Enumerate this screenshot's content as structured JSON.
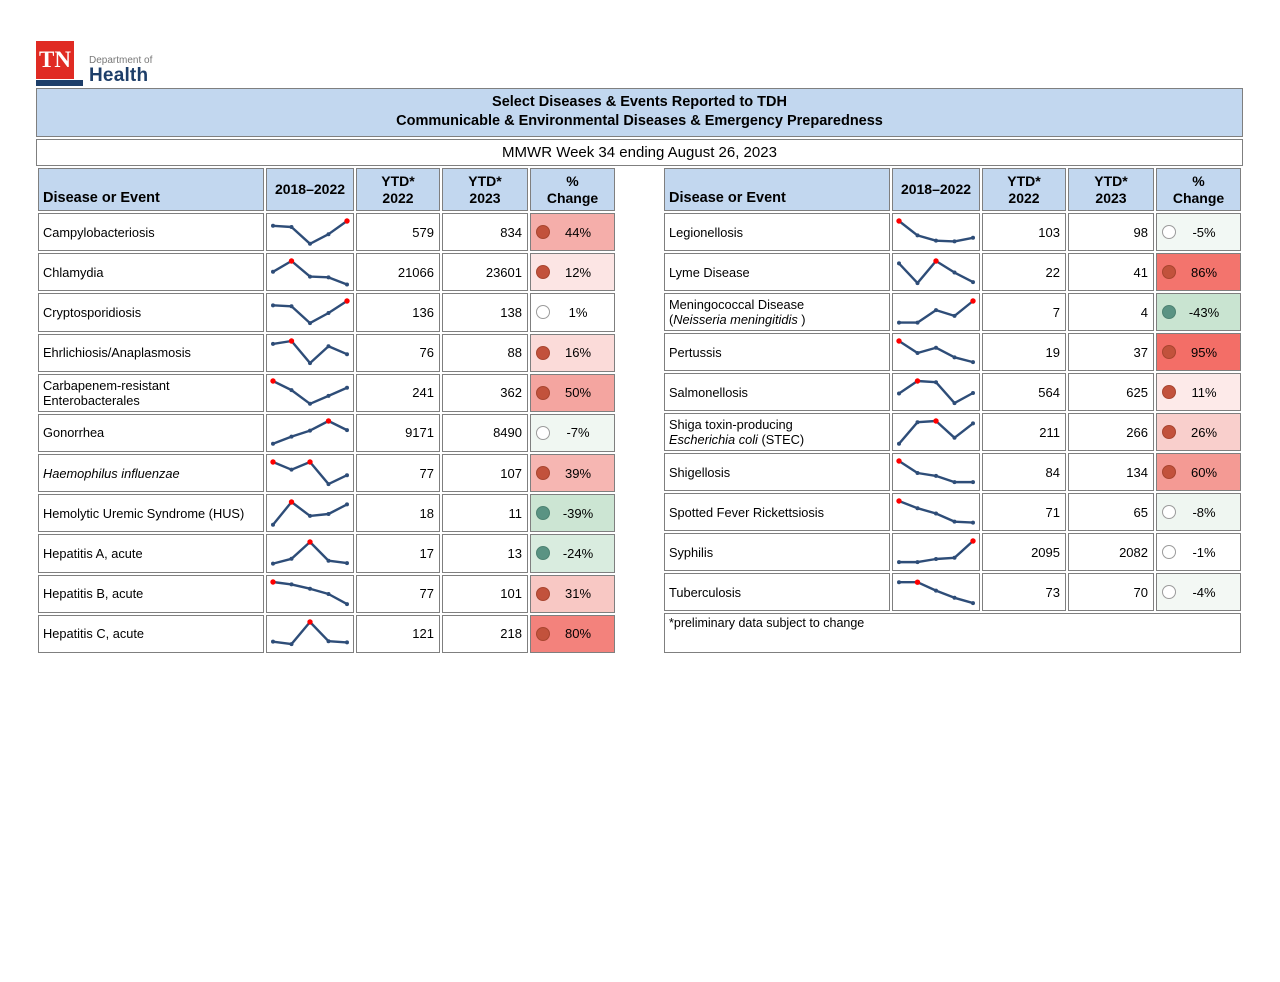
{
  "logo": {
    "tn": "TN",
    "dept": "Department of",
    "health": "Health"
  },
  "title": {
    "line1": "Select Diseases & Events Reported to TDH",
    "line2": "Communicable & Environmental Diseases & Emergency Preparedness"
  },
  "subtitle": "MMWR Week 34 ending August 26, 2023",
  "columns": {
    "disease": "Disease or Event",
    "trend": "2018–2022",
    "ytd2022_line1": "YTD*",
    "ytd2022_line2": "2022",
    "ytd2023_line1": "YTD*",
    "ytd2023_line2": "2023",
    "change_line1": "%",
    "change_line2": "Change"
  },
  "footnote": "*preliminary data subject to change",
  "colors": {
    "header_fill": "#c2d7ef",
    "cell_border": "#7f7f7f",
    "spark_line": "#2e4d78",
    "spark_peak": "#fe0000",
    "dot_up": "#c2523c",
    "dot_down": "#5a9383",
    "dot_neutral_border": "#9b9b9b",
    "logo_red": "#e02b23",
    "logo_navy": "#1d3e69"
  },
  "tables": [
    {
      "id": "left",
      "footnote": null,
      "rows": [
        {
          "name_lines": [
            [
              {
                "text": "Campylobacteriosis"
              }
            ]
          ],
          "trend": [
            0.8,
            0.75,
            0.05,
            0.45,
            1.0
          ],
          "peak": [
            4
          ],
          "ytd2022": "579",
          "ytd2023": "834",
          "change": "44%",
          "direction": "up",
          "change_bg": "#f5aeaa"
        },
        {
          "name_lines": [
            [
              {
                "text": "Chlamydia"
              }
            ]
          ],
          "trend": [
            0.55,
            1.0,
            0.35,
            0.32,
            0.02
          ],
          "peak": [
            1
          ],
          "ytd2022": "21066",
          "ytd2023": "23601",
          "change": "12%",
          "direction": "up",
          "change_bg": "#fce5e4"
        },
        {
          "name_lines": [
            [
              {
                "text": "Cryptosporidiosis"
              }
            ]
          ],
          "trend": [
            0.82,
            0.78,
            0.08,
            0.5,
            1.0
          ],
          "peak": [
            4
          ],
          "ytd2022": "136",
          "ytd2023": "138",
          "change": "1%",
          "direction": "neutral",
          "change_bg": "#ffffff"
        },
        {
          "name_lines": [
            [
              {
                "text": "Ehrlichiosis/Anaplasmosis"
              }
            ]
          ],
          "trend": [
            0.88,
            1.0,
            0.08,
            0.78,
            0.45
          ],
          "peak": [
            1
          ],
          "ytd2022": "76",
          "ytd2023": "88",
          "change": "16%",
          "direction": "up",
          "change_bg": "#fbdbd9"
        },
        {
          "name_lines": [
            [
              {
                "text": "Carbapenem-resistant"
              }
            ],
            [
              {
                "text": "Enterobacterales"
              }
            ]
          ],
          "trend": [
            1.0,
            0.62,
            0.05,
            0.38,
            0.72
          ],
          "peak": [
            0
          ],
          "ytd2022": "241",
          "ytd2023": "362",
          "change": "50%",
          "direction": "up",
          "change_bg": "#f4a5a0"
        },
        {
          "name_lines": [
            [
              {
                "text": "Gonorrhea"
              }
            ]
          ],
          "trend": [
            0.05,
            0.35,
            0.6,
            1.0,
            0.62
          ],
          "peak": [
            3
          ],
          "ytd2022": "9171",
          "ytd2023": "8490",
          "change": "-7%",
          "direction": "neutral",
          "change_bg": "#f0f7f2"
        },
        {
          "name_lines": [
            [
              {
                "text": "Haemophilus influenzae",
                "italic": true
              }
            ]
          ],
          "trend": [
            1.0,
            0.68,
            1.0,
            0.08,
            0.45
          ],
          "peak": [
            0,
            2
          ],
          "ytd2022": "77",
          "ytd2023": "107",
          "change": "39%",
          "direction": "up",
          "change_bg": "#f6b6b2"
        },
        {
          "name_lines": [
            [
              {
                "text": "Hemolytic Uremic Syndrome (HUS)"
              }
            ]
          ],
          "trend": [
            0.05,
            1.0,
            0.42,
            0.5,
            0.9
          ],
          "peak": [
            1
          ],
          "ytd2022": "18",
          "ytd2023": "11",
          "change": "-39%",
          "direction": "down",
          "change_bg": "#cce5d3"
        },
        {
          "name_lines": [
            [
              {
                "text": "Hepatitis A, acute"
              }
            ]
          ],
          "trend": [
            0.1,
            0.3,
            1.0,
            0.22,
            0.12
          ],
          "peak": [
            2
          ],
          "ytd2022": "17",
          "ytd2023": "13",
          "change": "-24%",
          "direction": "down",
          "change_bg": "#d9ecdf"
        },
        {
          "name_lines": [
            [
              {
                "text": "Hepatitis B, acute"
              }
            ]
          ],
          "trend": [
            1.0,
            0.9,
            0.72,
            0.5,
            0.08
          ],
          "peak": [
            0
          ],
          "ytd2022": "77",
          "ytd2023": "101",
          "change": "31%",
          "direction": "up",
          "change_bg": "#f8c8c4"
        },
        {
          "name_lines": [
            [
              {
                "text": "Hepatitis C, acute"
              }
            ]
          ],
          "trend": [
            0.18,
            0.08,
            1.0,
            0.2,
            0.15
          ],
          "peak": [
            2
          ],
          "ytd2022": "121",
          "ytd2023": "218",
          "change": "80%",
          "direction": "up",
          "change_bg": "#f3827c"
        }
      ]
    },
    {
      "id": "right",
      "footnote": "*preliminary data subject to change",
      "rows": [
        {
          "name_lines": [
            [
              {
                "text": "Legionellosis"
              }
            ]
          ],
          "trend": [
            1.0,
            0.4,
            0.18,
            0.15,
            0.3
          ],
          "peak": [
            0
          ],
          "ytd2022": "103",
          "ytd2023": "98",
          "change": "-5%",
          "direction": "neutral",
          "change_bg": "#f2f8f4"
        },
        {
          "name_lines": [
            [
              {
                "text": "Lyme Disease"
              }
            ]
          ],
          "trend": [
            0.9,
            0.08,
            1.0,
            0.52,
            0.12
          ],
          "peak": [
            2
          ],
          "ytd2022": "22",
          "ytd2023": "41",
          "change": "86%",
          "direction": "up",
          "change_bg": "#f3746d"
        },
        {
          "name_lines": [
            [
              {
                "text": "Meningococcal Disease"
              }
            ],
            [
              {
                "text": "("
              },
              {
                "text": "Neisseria meningitidis",
                "italic": true
              },
              {
                "text": " )"
              }
            ]
          ],
          "trend": [
            0.1,
            0.1,
            0.62,
            0.38,
            1.0
          ],
          "peak": [
            4
          ],
          "ytd2022": "7",
          "ytd2023": "4",
          "change": "-43%",
          "direction": "down",
          "change_bg": "#c9e4d1"
        },
        {
          "name_lines": [
            [
              {
                "text": "Pertussis"
              }
            ]
          ],
          "trend": [
            1.0,
            0.5,
            0.72,
            0.32,
            0.12
          ],
          "peak": [
            0
          ],
          "ytd2022": "19",
          "ytd2023": "37",
          "change": "95%",
          "direction": "up",
          "change_bg": "#f36e67"
        },
        {
          "name_lines": [
            [
              {
                "text": "Salmonellosis"
              }
            ]
          ],
          "trend": [
            0.48,
            1.0,
            0.95,
            0.08,
            0.5
          ],
          "peak": [
            1
          ],
          "ytd2022": "564",
          "ytd2023": "625",
          "change": "11%",
          "direction": "up",
          "change_bg": "#fdeae9"
        },
        {
          "name_lines": [
            [
              {
                "text": "Shiga toxin-producing"
              }
            ],
            [
              {
                "text": "Escherichia coli",
                "italic": true
              },
              {
                "text": " (STEC)"
              }
            ]
          ],
          "trend": [
            0.05,
            0.95,
            1.0,
            0.3,
            0.9
          ],
          "peak": [
            2
          ],
          "ytd2022": "211",
          "ytd2023": "266",
          "change": "26%",
          "direction": "up",
          "change_bg": "#f9cfcc"
        },
        {
          "name_lines": [
            [
              {
                "text": "Shigellosis"
              }
            ]
          ],
          "trend": [
            1.0,
            0.5,
            0.38,
            0.12,
            0.12
          ],
          "peak": [
            0
          ],
          "ytd2022": "84",
          "ytd2023": "134",
          "change": "60%",
          "direction": "up",
          "change_bg": "#f49a94"
        },
        {
          "name_lines": [
            [
              {
                "text": "Spotted Fever Rickettsiosis"
              }
            ]
          ],
          "trend": [
            1.0,
            0.7,
            0.48,
            0.14,
            0.1
          ],
          "peak": [
            0
          ],
          "ytd2022": "71",
          "ytd2023": "65",
          "change": "-8%",
          "direction": "neutral",
          "change_bg": "#eff6f1"
        },
        {
          "name_lines": [
            [
              {
                "text": "Syphilis"
              }
            ]
          ],
          "trend": [
            0.12,
            0.12,
            0.25,
            0.3,
            1.0
          ],
          "peak": [
            4
          ],
          "ytd2022": "2095",
          "ytd2023": "2082",
          "change": "-1%",
          "direction": "neutral",
          "change_bg": "#ffffff"
        },
        {
          "name_lines": [
            [
              {
                "text": "Tuberculosis"
              }
            ]
          ],
          "trend": [
            0.95,
            0.95,
            0.6,
            0.3,
            0.08
          ],
          "peak": [
            1
          ],
          "ytd2022": "73",
          "ytd2023": "70",
          "change": "-4%",
          "direction": "neutral",
          "change_bg": "#f3f8f4"
        }
      ]
    }
  ]
}
